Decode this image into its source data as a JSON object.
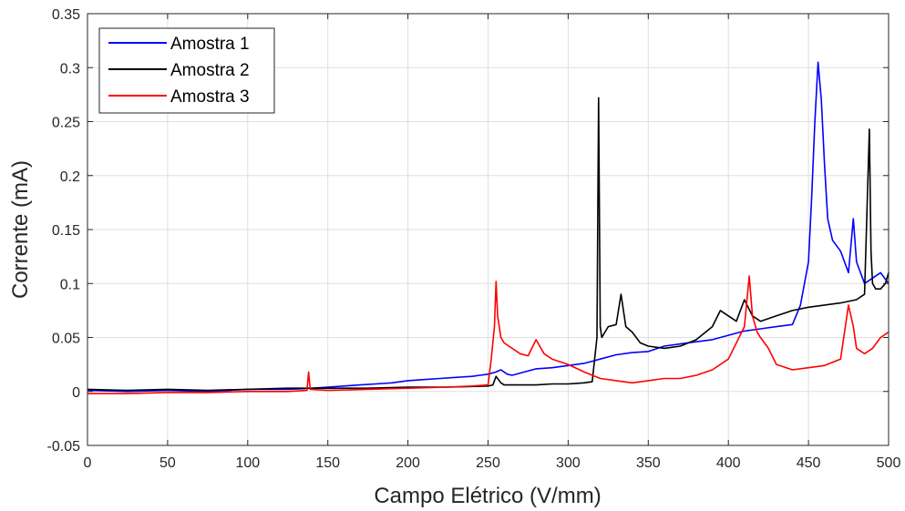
{
  "chart_data": {
    "type": "line",
    "title": "",
    "xlabel": "Campo Elétrico (V/mm)",
    "ylabel": "Corrente (mA)",
    "xlim": [
      0,
      500
    ],
    "ylim": [
      -0.05,
      0.35
    ],
    "xticks": [
      "0",
      "50",
      "100",
      "150",
      "200",
      "250",
      "300",
      "350",
      "400",
      "450",
      "500"
    ],
    "yticks": [
      "-0.05",
      "0",
      "0.05",
      "0.1",
      "0.15",
      "0.2",
      "0.25",
      "0.3",
      "0.35"
    ],
    "grid": true,
    "legend_position": "top-left",
    "series": [
      {
        "name": "Amostra 1",
        "color": "#0000ff",
        "x": [
          0,
          25,
          50,
          75,
          100,
          125,
          140,
          150,
          160,
          170,
          180,
          190,
          200,
          210,
          220,
          230,
          240,
          245,
          250,
          255,
          258,
          262,
          265,
          270,
          280,
          290,
          300,
          310,
          315,
          320,
          330,
          340,
          350,
          360,
          370,
          380,
          390,
          395,
          400,
          410,
          420,
          430,
          440,
          445,
          450,
          452,
          454,
          456,
          458,
          460,
          462,
          465,
          470,
          475,
          478,
          480,
          485,
          490,
          495,
          500
        ],
        "y": [
          0.001,
          0.0,
          0.001,
          0.0,
          0.002,
          0.002,
          0.003,
          0.004,
          0.005,
          0.006,
          0.007,
          0.008,
          0.01,
          0.011,
          0.012,
          0.013,
          0.014,
          0.015,
          0.016,
          0.018,
          0.02,
          0.016,
          0.015,
          0.017,
          0.021,
          0.022,
          0.024,
          0.026,
          0.028,
          0.03,
          0.034,
          0.036,
          0.037,
          0.042,
          0.044,
          0.046,
          0.048,
          0.05,
          0.052,
          0.056,
          0.058,
          0.06,
          0.062,
          0.08,
          0.12,
          0.18,
          0.25,
          0.305,
          0.27,
          0.21,
          0.16,
          0.14,
          0.13,
          0.11,
          0.16,
          0.12,
          0.1,
          0.105,
          0.11,
          0.1
        ]
      },
      {
        "name": "Amostra 2",
        "color": "#000000",
        "x": [
          0,
          25,
          50,
          75,
          100,
          125,
          150,
          175,
          200,
          225,
          250,
          253,
          255,
          258,
          260,
          270,
          280,
          290,
          300,
          310,
          315,
          318,
          319,
          320,
          321,
          323,
          325,
          330,
          333,
          336,
          340,
          345,
          350,
          360,
          370,
          380,
          390,
          395,
          400,
          405,
          410,
          415,
          420,
          430,
          440,
          450,
          460,
          470,
          480,
          485,
          488,
          489,
          490,
          492,
          495,
          498,
          500
        ],
        "y": [
          0.002,
          0.001,
          0.002,
          0.001,
          0.002,
          0.003,
          0.003,
          0.003,
          0.004,
          0.004,
          0.005,
          0.006,
          0.014,
          0.008,
          0.006,
          0.006,
          0.006,
          0.007,
          0.007,
          0.008,
          0.009,
          0.05,
          0.272,
          0.06,
          0.05,
          0.055,
          0.06,
          0.062,
          0.09,
          0.06,
          0.055,
          0.045,
          0.042,
          0.04,
          0.042,
          0.048,
          0.06,
          0.075,
          0.07,
          0.065,
          0.085,
          0.07,
          0.065,
          0.07,
          0.075,
          0.078,
          0.08,
          0.082,
          0.085,
          0.09,
          0.243,
          0.13,
          0.1,
          0.095,
          0.095,
          0.1,
          0.11
        ]
      },
      {
        "name": "Amostra 3",
        "color": "#ff0000",
        "x": [
          0,
          25,
          50,
          75,
          100,
          125,
          137,
          138,
          139,
          150,
          175,
          200,
          225,
          240,
          250,
          252,
          254,
          255,
          256,
          258,
          260,
          265,
          270,
          275,
          280,
          285,
          290,
          300,
          310,
          320,
          330,
          340,
          350,
          360,
          370,
          380,
          390,
          400,
          405,
          410,
          413,
          415,
          418,
          420,
          425,
          430,
          440,
          450,
          460,
          470,
          475,
          478,
          480,
          485,
          490,
          495,
          500
        ],
        "y": [
          -0.002,
          -0.002,
          -0.001,
          -0.001,
          0.0,
          0.0,
          0.001,
          0.018,
          0.002,
          0.001,
          0.002,
          0.003,
          0.004,
          0.005,
          0.006,
          0.03,
          0.06,
          0.102,
          0.07,
          0.05,
          0.045,
          0.04,
          0.035,
          0.033,
          0.048,
          0.035,
          0.03,
          0.025,
          0.018,
          0.012,
          0.01,
          0.008,
          0.01,
          0.012,
          0.012,
          0.015,
          0.02,
          0.03,
          0.045,
          0.06,
          0.107,
          0.07,
          0.055,
          0.05,
          0.04,
          0.025,
          0.02,
          0.022,
          0.024,
          0.03,
          0.08,
          0.06,
          0.04,
          0.035,
          0.04,
          0.05,
          0.055
        ]
      }
    ]
  }
}
